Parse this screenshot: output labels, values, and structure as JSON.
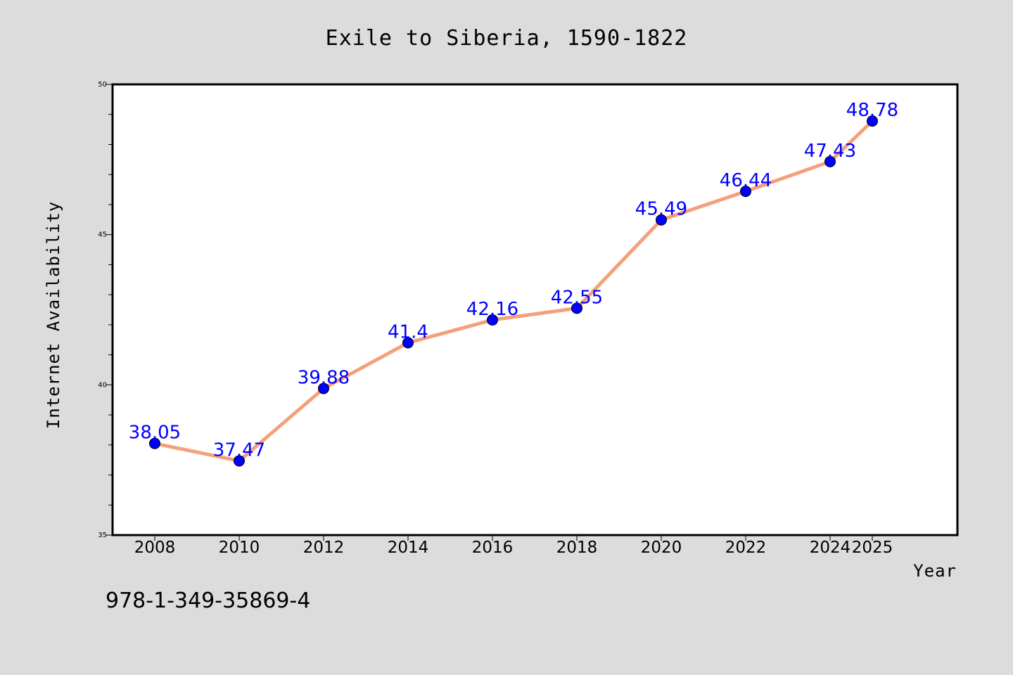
{
  "chart_data": {
    "type": "line",
    "title": "Exile to Siberia, 1590-1822",
    "xlabel": "Year",
    "ylabel": "Internet Availability",
    "x": [
      "2008",
      "2010",
      "2012",
      "2014",
      "2016",
      "2018",
      "2020",
      "2022",
      "2024",
      "2025"
    ],
    "values": [
      38.05,
      37.47,
      39.88,
      41.4,
      42.16,
      42.55,
      45.49,
      46.44,
      47.43,
      48.78
    ],
    "data_labels": [
      "38.05",
      "37.47",
      "39.88",
      "41.4",
      "42.16",
      "42.55",
      "45.49",
      "46.44",
      "47.43",
      "48.78"
    ],
    "ylim": [
      35,
      50
    ],
    "y_ticks": [
      35,
      40,
      45,
      50
    ],
    "y_minor_step": 1,
    "grid": false,
    "legend": "none",
    "colors": {
      "line": "#f4a07c",
      "marker": "#0000ff",
      "data_label": "#0000ff",
      "background": "#dcdcdc",
      "plot_background": "#ffffff"
    }
  },
  "footer": {
    "isbn": "978-1-349-35869-4"
  }
}
